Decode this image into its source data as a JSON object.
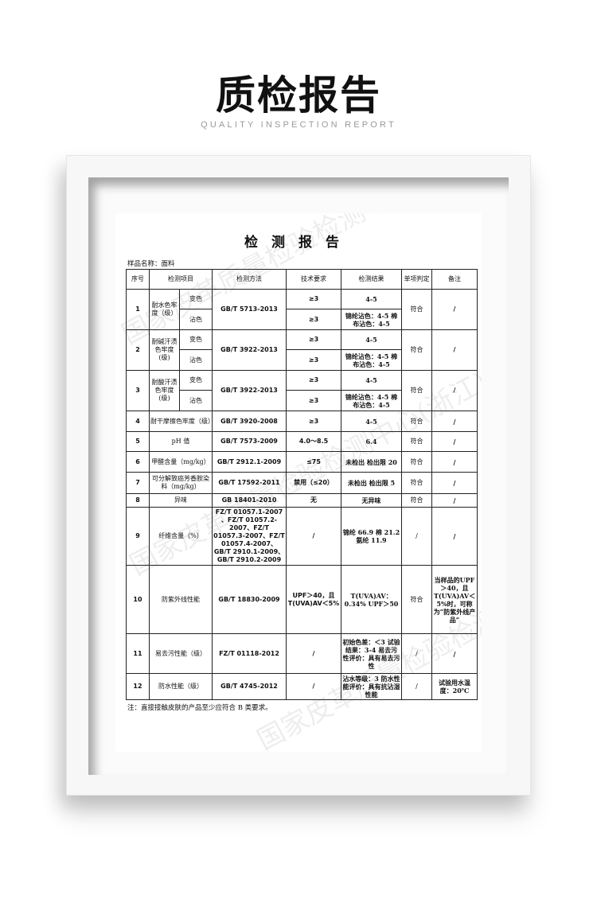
{
  "header": {
    "title": "质检报告",
    "subtitle": "QUALITY INSPECTION REPORT"
  },
  "watermark": "国家皮革质量检验检测中心(浙江)",
  "document": {
    "title": "检测报告",
    "sample_name": "样品名称：面料",
    "columns": [
      "序号",
      "检测项目",
      "检测方法",
      "技术要求",
      "检测结果",
      "单项判定",
      "备注"
    ],
    "rows": [
      {
        "no": "1",
        "item": "耐水色牢度（级）",
        "sub": [
          {
            "name": "变色",
            "req": "≥3",
            "result": "4-5"
          },
          {
            "name": "沾色",
            "req": "≥3",
            "result": "锦纶沾色：4-5 棉布沾色：4-5"
          }
        ],
        "method": "GB/T 5713-2013",
        "verdict": "符合",
        "remark": "/"
      },
      {
        "no": "2",
        "item": "耐碱汗渍色牢度(级)",
        "sub": [
          {
            "name": "变色",
            "req": "≥3",
            "result": "4-5"
          },
          {
            "name": "沾色",
            "req": "≥3",
            "result": "锦纶沾色：4-5 棉布沾色：4-5"
          }
        ],
        "method": "GB/T 3922-2013",
        "verdict": "符合",
        "remark": "/"
      },
      {
        "no": "3",
        "item": "耐酸汗渍色牢度(级)",
        "sub": [
          {
            "name": "变色",
            "req": "≥3",
            "result": "4-5"
          },
          {
            "name": "沾色",
            "req": "≥3",
            "result": "锦纶沾色：4-5 棉布沾色：4-5"
          }
        ],
        "method": "GB/T 3922-2013",
        "verdict": "符合",
        "remark": "/"
      },
      {
        "no": "4",
        "item": "耐干摩擦色牢度（级）",
        "method": "GB/T 3920-2008",
        "req": "≥3",
        "result": "4-5",
        "verdict": "符合",
        "remark": "/"
      },
      {
        "no": "5",
        "item": "pH 值",
        "method": "GB/T 7573-2009",
        "req": "4.0～8.5",
        "result": "6.4",
        "verdict": "符合",
        "remark": "/"
      },
      {
        "no": "6",
        "item": "甲醛含量（mg/kg）",
        "method": "GB/T 2912.1-2009",
        "req": "≤75",
        "result": "未检出 检出限 20",
        "verdict": "符合",
        "remark": "/"
      },
      {
        "no": "7",
        "item": "可分解致癌芳香胺染料（mg/kg）",
        "method": "GB/T 17592-2011",
        "req": "禁用（≤20）",
        "result": "未检出 检出限 5",
        "verdict": "符合",
        "remark": "/"
      },
      {
        "no": "8",
        "item": "异味",
        "method": "GB 18401-2010",
        "req": "无",
        "result": "无异味",
        "verdict": "符合",
        "remark": "/"
      },
      {
        "no": "9",
        "item": "纤维含量（%）",
        "method": "FZ/T 01057.1-2007 、FZ/T 01057.2-2007、FZ/T 01057.3-2007、FZ/T 01057.4-2007、GB/T 2910.1-2009、GB/T 2910.2-2009",
        "req": "/",
        "result": "锦纶 66.9 棉 21.2 氨纶 11.9",
        "verdict": "/",
        "remark": "/"
      },
      {
        "no": "10",
        "item": "防紫外线性能",
        "method": "GB/T 18830-2009",
        "req": "UPF＞40，且 T(UVA)AV＜5%",
        "result": "T(UVA)AV：0.34% UPF＞50",
        "verdict": "符合",
        "remark": "当样品的UPF＞40，且 T(UVA)AV＜5%时，可称为“防紫外线产品”"
      },
      {
        "no": "11",
        "item": "易去污性能（级）",
        "method": "FZ/T 01118-2012",
        "req": "/",
        "result": "初始色差：＜3 试验结果：3-4 易去污性评价：具有易去污性",
        "verdict": "/",
        "remark": "/"
      },
      {
        "no": "12",
        "item": "防水性能（级）",
        "method": "GB/T 4745-2012",
        "req": "/",
        "result": "沾水等级：3 防水性能评价：具有抗沾湿性能",
        "verdict": "/",
        "remark": "试验用水温度：20℃"
      }
    ],
    "note": "注：直接接触皮肤的产品至少应符合 B 类要求。"
  }
}
